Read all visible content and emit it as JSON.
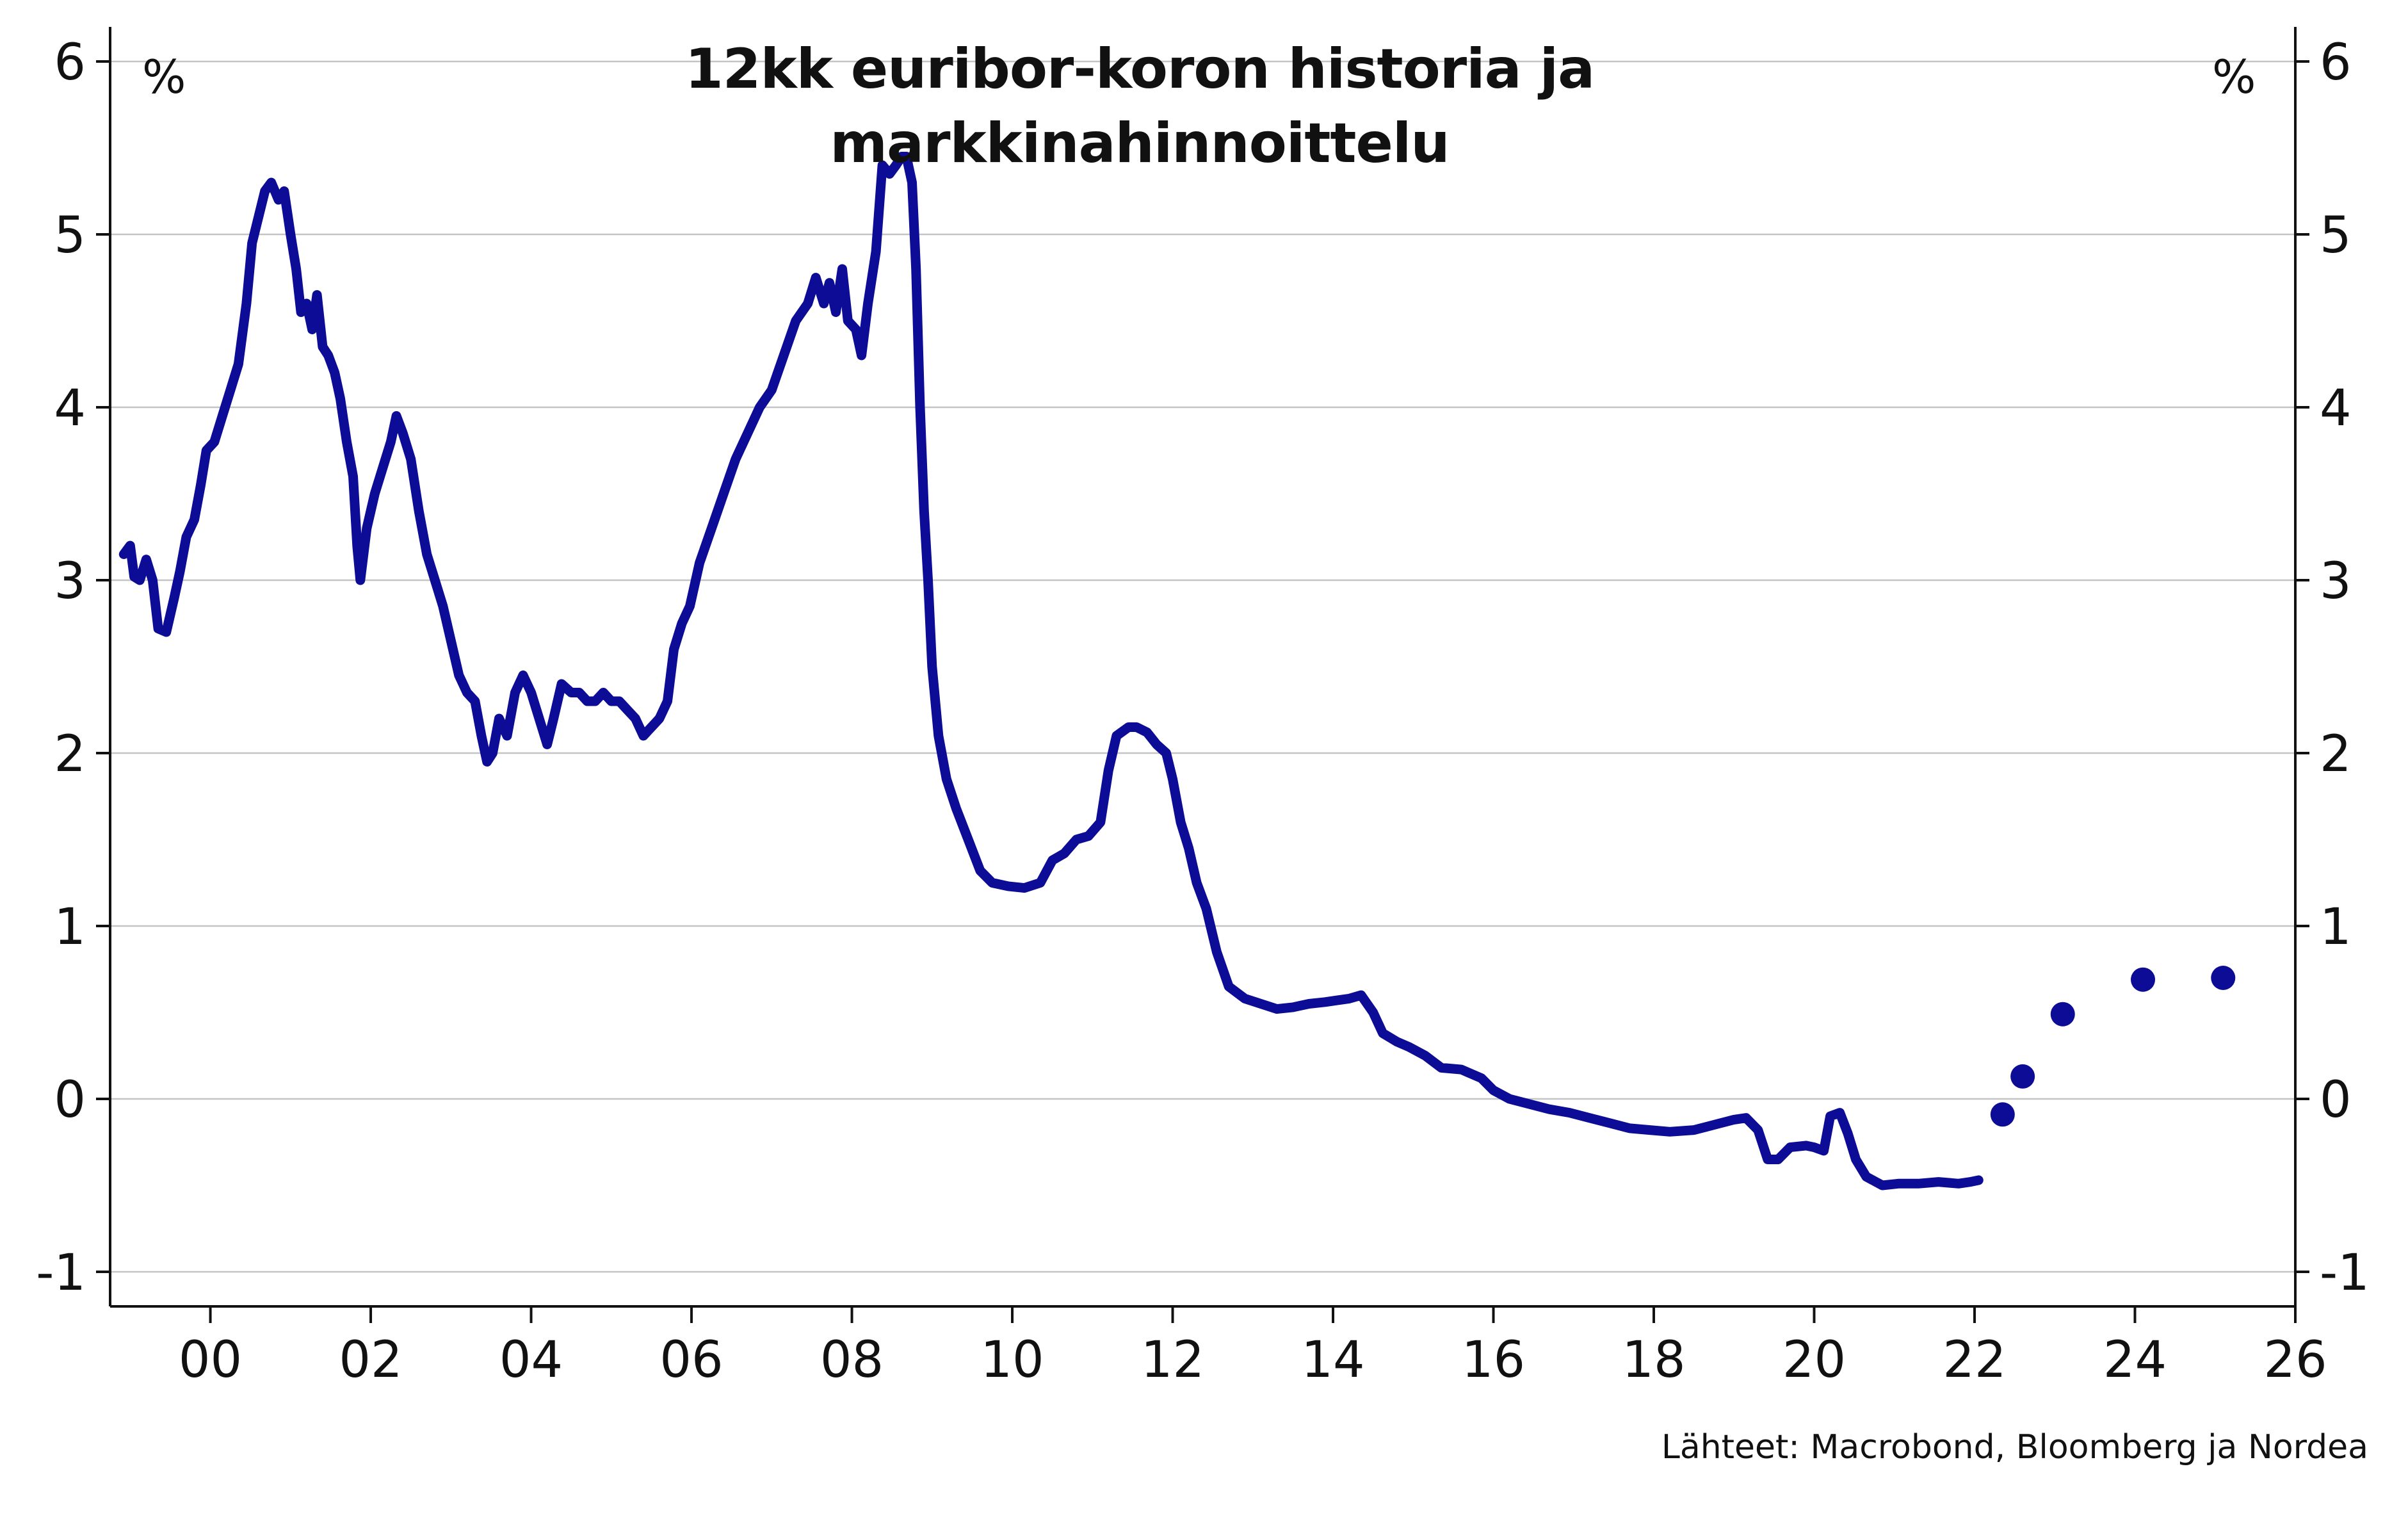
{
  "chart_data": {
    "type": "line",
    "title": "12kk euribor-koron historia ja markkinahinnoittelu",
    "y_unit_left": "%",
    "y_unit_right": "%",
    "source": "Lähteet: Macrobond, Bloomberg ja Nordea",
    "xlim": [
      1998.75,
      2026
    ],
    "ylim": [
      -1.2,
      6.2
    ],
    "x_ticks": [
      {
        "x": 2000,
        "label": "00"
      },
      {
        "x": 2002,
        "label": "02"
      },
      {
        "x": 2004,
        "label": "04"
      },
      {
        "x": 2006,
        "label": "06"
      },
      {
        "x": 2008,
        "label": "08"
      },
      {
        "x": 2010,
        "label": "10"
      },
      {
        "x": 2012,
        "label": "12"
      },
      {
        "x": 2014,
        "label": "14"
      },
      {
        "x": 2016,
        "label": "16"
      },
      {
        "x": 2018,
        "label": "18"
      },
      {
        "x": 2020,
        "label": "20"
      },
      {
        "x": 2022,
        "label": "22"
      },
      {
        "x": 2024,
        "label": "24"
      },
      {
        "x": 2026,
        "label": "26"
      }
    ],
    "y_ticks": [
      {
        "y": 6,
        "label": "6"
      },
      {
        "y": 5,
        "label": "5"
      },
      {
        "y": 4,
        "label": "4"
      },
      {
        "y": 3,
        "label": "3"
      },
      {
        "y": 2,
        "label": "2"
      },
      {
        "y": 1,
        "label": "1"
      },
      {
        "y": 0,
        "label": "0"
      },
      {
        "y": -1,
        "label": "-1"
      }
    ],
    "grid": true,
    "colors": {
      "line": "#0c0c96",
      "grid": "#c4c4c4",
      "axis": "#111111"
    },
    "series": [
      {
        "style": "line",
        "points": [
          [
            1998.92,
            3.15
          ],
          [
            1999.0,
            3.2
          ],
          [
            1999.05,
            3.02
          ],
          [
            1999.12,
            3.0
          ],
          [
            1999.2,
            3.12
          ],
          [
            1999.28,
            3.0
          ],
          [
            1999.35,
            2.72
          ],
          [
            1999.45,
            2.7
          ],
          [
            1999.55,
            2.9
          ],
          [
            1999.62,
            3.05
          ],
          [
            1999.7,
            3.25
          ],
          [
            1999.8,
            3.35
          ],
          [
            1999.88,
            3.55
          ],
          [
            1999.95,
            3.75
          ],
          [
            2000.05,
            3.8
          ],
          [
            2000.15,
            3.95
          ],
          [
            2000.25,
            4.1
          ],
          [
            2000.35,
            4.25
          ],
          [
            2000.45,
            4.6
          ],
          [
            2000.52,
            4.95
          ],
          [
            2000.6,
            5.1
          ],
          [
            2000.68,
            5.25
          ],
          [
            2000.76,
            5.3
          ],
          [
            2000.85,
            5.2
          ],
          [
            2000.92,
            5.25
          ],
          [
            2001.0,
            5.0
          ],
          [
            2001.07,
            4.8
          ],
          [
            2001.13,
            4.55
          ],
          [
            2001.2,
            4.6
          ],
          [
            2001.27,
            4.45
          ],
          [
            2001.33,
            4.65
          ],
          [
            2001.4,
            4.35
          ],
          [
            2001.47,
            4.3
          ],
          [
            2001.55,
            4.2
          ],
          [
            2001.62,
            4.05
          ],
          [
            2001.7,
            3.8
          ],
          [
            2001.78,
            3.6
          ],
          [
            2001.83,
            3.2
          ],
          [
            2001.87,
            3.0
          ],
          [
            2001.95,
            3.3
          ],
          [
            2002.05,
            3.5
          ],
          [
            2002.15,
            3.65
          ],
          [
            2002.25,
            3.8
          ],
          [
            2002.32,
            3.95
          ],
          [
            2002.4,
            3.85
          ],
          [
            2002.5,
            3.7
          ],
          [
            2002.6,
            3.4
          ],
          [
            2002.7,
            3.15
          ],
          [
            2002.8,
            3.0
          ],
          [
            2002.9,
            2.85
          ],
          [
            2003.0,
            2.65
          ],
          [
            2003.1,
            2.45
          ],
          [
            2003.2,
            2.35
          ],
          [
            2003.3,
            2.3
          ],
          [
            2003.38,
            2.1
          ],
          [
            2003.45,
            1.95
          ],
          [
            2003.52,
            2.0
          ],
          [
            2003.6,
            2.2
          ],
          [
            2003.7,
            2.1
          ],
          [
            2003.8,
            2.35
          ],
          [
            2003.9,
            2.45
          ],
          [
            2004.0,
            2.35
          ],
          [
            2004.1,
            2.2
          ],
          [
            2004.2,
            2.05
          ],
          [
            2004.28,
            2.2
          ],
          [
            2004.38,
            2.4
          ],
          [
            2004.5,
            2.35
          ],
          [
            2004.6,
            2.35
          ],
          [
            2004.7,
            2.3
          ],
          [
            2004.8,
            2.3
          ],
          [
            2004.9,
            2.35
          ],
          [
            2005.0,
            2.3
          ],
          [
            2005.1,
            2.3
          ],
          [
            2005.2,
            2.25
          ],
          [
            2005.3,
            2.2
          ],
          [
            2005.4,
            2.1
          ],
          [
            2005.5,
            2.15
          ],
          [
            2005.6,
            2.2
          ],
          [
            2005.7,
            2.3
          ],
          [
            2005.78,
            2.6
          ],
          [
            2005.88,
            2.75
          ],
          [
            2005.98,
            2.85
          ],
          [
            2006.1,
            3.1
          ],
          [
            2006.25,
            3.3
          ],
          [
            2006.4,
            3.5
          ],
          [
            2006.55,
            3.7
          ],
          [
            2006.7,
            3.85
          ],
          [
            2006.85,
            4.0
          ],
          [
            2007.0,
            4.1
          ],
          [
            2007.15,
            4.3
          ],
          [
            2007.3,
            4.5
          ],
          [
            2007.45,
            4.6
          ],
          [
            2007.55,
            4.75
          ],
          [
            2007.65,
            4.6
          ],
          [
            2007.72,
            4.72
          ],
          [
            2007.8,
            4.55
          ],
          [
            2007.88,
            4.8
          ],
          [
            2007.95,
            4.5
          ],
          [
            2008.05,
            4.45
          ],
          [
            2008.12,
            4.3
          ],
          [
            2008.2,
            4.6
          ],
          [
            2008.3,
            4.9
          ],
          [
            2008.38,
            5.4
          ],
          [
            2008.47,
            5.35
          ],
          [
            2008.55,
            5.4
          ],
          [
            2008.62,
            5.45
          ],
          [
            2008.68,
            5.45
          ],
          [
            2008.75,
            5.3
          ],
          [
            2008.8,
            4.8
          ],
          [
            2008.85,
            4.0
          ],
          [
            2008.9,
            3.4
          ],
          [
            2008.95,
            3.0
          ],
          [
            2009.0,
            2.5
          ],
          [
            2009.08,
            2.1
          ],
          [
            2009.18,
            1.85
          ],
          [
            2009.3,
            1.68
          ],
          [
            2009.45,
            1.5
          ],
          [
            2009.6,
            1.32
          ],
          [
            2009.75,
            1.25
          ],
          [
            2009.95,
            1.23
          ],
          [
            2010.15,
            1.22
          ],
          [
            2010.35,
            1.25
          ],
          [
            2010.5,
            1.38
          ],
          [
            2010.65,
            1.42
          ],
          [
            2010.8,
            1.5
          ],
          [
            2010.95,
            1.52
          ],
          [
            2011.1,
            1.6
          ],
          [
            2011.2,
            1.9
          ],
          [
            2011.3,
            2.1
          ],
          [
            2011.45,
            2.15
          ],
          [
            2011.55,
            2.15
          ],
          [
            2011.68,
            2.12
          ],
          [
            2011.8,
            2.05
          ],
          [
            2011.92,
            2.0
          ],
          [
            2012.0,
            1.85
          ],
          [
            2012.1,
            1.6
          ],
          [
            2012.2,
            1.45
          ],
          [
            2012.3,
            1.25
          ],
          [
            2012.42,
            1.1
          ],
          [
            2012.55,
            0.85
          ],
          [
            2012.7,
            0.65
          ],
          [
            2012.9,
            0.58
          ],
          [
            2013.1,
            0.55
          ],
          [
            2013.3,
            0.52
          ],
          [
            2013.5,
            0.53
          ],
          [
            2013.7,
            0.55
          ],
          [
            2013.9,
            0.56
          ],
          [
            2014.05,
            0.57
          ],
          [
            2014.2,
            0.58
          ],
          [
            2014.35,
            0.6
          ],
          [
            2014.5,
            0.5
          ],
          [
            2014.62,
            0.38
          ],
          [
            2014.8,
            0.33
          ],
          [
            2014.95,
            0.3
          ],
          [
            2015.15,
            0.25
          ],
          [
            2015.35,
            0.18
          ],
          [
            2015.6,
            0.17
          ],
          [
            2015.85,
            0.12
          ],
          [
            2016.0,
            0.05
          ],
          [
            2016.2,
            0.0
          ],
          [
            2016.45,
            -0.03
          ],
          [
            2016.7,
            -0.06
          ],
          [
            2016.95,
            -0.08
          ],
          [
            2017.2,
            -0.11
          ],
          [
            2017.45,
            -0.14
          ],
          [
            2017.7,
            -0.17
          ],
          [
            2017.95,
            -0.18
          ],
          [
            2018.2,
            -0.19
          ],
          [
            2018.5,
            -0.18
          ],
          [
            2018.75,
            -0.15
          ],
          [
            2019.0,
            -0.12
          ],
          [
            2019.15,
            -0.11
          ],
          [
            2019.3,
            -0.18
          ],
          [
            2019.42,
            -0.35
          ],
          [
            2019.55,
            -0.35
          ],
          [
            2019.7,
            -0.28
          ],
          [
            2019.9,
            -0.27
          ],
          [
            2020.0,
            -0.28
          ],
          [
            2020.12,
            -0.3
          ],
          [
            2020.2,
            -0.1
          ],
          [
            2020.32,
            -0.08
          ],
          [
            2020.42,
            -0.2
          ],
          [
            2020.52,
            -0.35
          ],
          [
            2020.65,
            -0.45
          ],
          [
            2020.85,
            -0.5
          ],
          [
            2021.05,
            -0.49
          ],
          [
            2021.3,
            -0.49
          ],
          [
            2021.55,
            -0.48
          ],
          [
            2021.8,
            -0.49
          ],
          [
            2021.95,
            -0.48
          ],
          [
            2022.05,
            -0.47
          ]
        ]
      },
      {
        "style": "dots",
        "points": [
          [
            2022.35,
            -0.09
          ],
          [
            2022.6,
            0.13
          ],
          [
            2023.1,
            0.49
          ],
          [
            2024.1,
            0.69
          ],
          [
            2025.1,
            0.7
          ]
        ]
      }
    ]
  }
}
